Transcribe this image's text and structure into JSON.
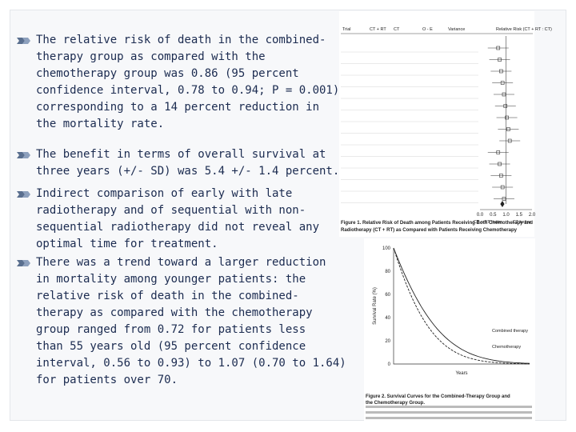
{
  "bullets": [
    [
      "The relative risk of death in the combined-",
      "therapy group as compared with the",
      "chemotherapy group was 0.86 (95 percent",
      "confidence interval, 0.78 to 0.94; P = 0.001)",
      "corresponding to a 14 percent reduction in",
      "the mortality rate."
    ],
    [
      "The benefit in terms of overall survival at",
      "three years (+/- SD) was 5.4 +/- 1.4 percent."
    ],
    [
      "Indirect comparison of early with late",
      "radiotherapy and of sequential with non-",
      "sequential radiotherapy did not reveal any",
      "optimal time for treatment."
    ],
    [
      "There was a trend toward a larger reduction",
      "in mortality among younger patients: the",
      "relative risk of death in the combined-",
      "therapy as compared with the chemotherapy",
      "group ranged from 0.72 for patients less",
      "than 55 years old (95 percent confidence",
      "interval, 0.56 to 0.93) to 1.07 (0.70 to 1.64)",
      "for patients over 70."
    ]
  ],
  "figure1": {
    "headers": [
      "Trial",
      "CT + RT",
      "CT",
      "O - E",
      "Variance",
      "Relative Risk (CT + RT : CT)"
    ],
    "axis": [
      "0.0",
      "0.5",
      "1.0",
      "1.5",
      "2.0"
    ],
    "better": [
      "CT + RT better",
      "CT better"
    ],
    "caption": [
      "Figure 1. Relative Risk of Death among Patients Receiving Both Chemotherapy and",
      "Radiotherapy (CT + RT) as Compared with Patients Receiving Chemotherapy"
    ]
  },
  "figure2": {
    "ylabel": "Survival Rate (%)",
    "yticks": [
      "100",
      "80",
      "60",
      "40",
      "20",
      "0"
    ],
    "xlabel": "Years",
    "curves": [
      "Combined therapy",
      "Chemotherapy"
    ],
    "caption": [
      "Figure 2. Survival Curves for the Combined-Therapy Group and",
      "the Chemotherapy Group."
    ]
  }
}
